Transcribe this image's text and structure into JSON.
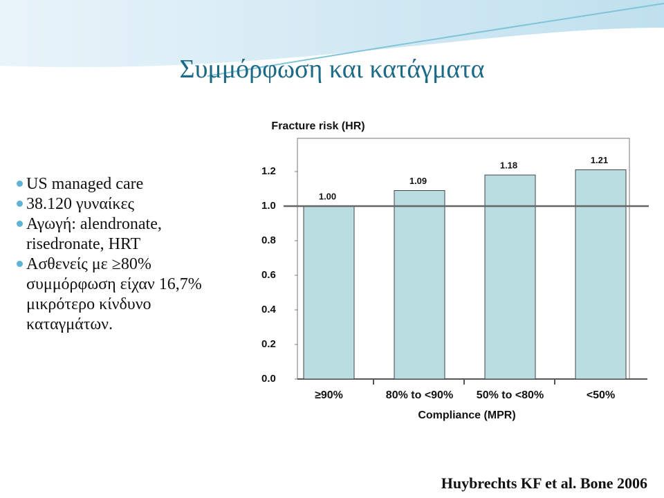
{
  "slide": {
    "title": "Συμμόρφωση και κατάγματα",
    "bullets": [
      "US managed care",
      "38.120 γυναίκες",
      "Αγωγή: alendronate, risedronate, HRT",
      "Ασθενείς με ≥80% συμμόρφωση είχαν 16,7% μικρότερο κίνδυνο καταγμάτων."
    ],
    "citation": "Huybrechts KF et al. Bone 2006"
  },
  "chart_data": {
    "type": "bar",
    "title": "Fracture risk (HR)",
    "x_label": "Compliance (MPR)",
    "categories": [
      "≥90%",
      "80% to <90%",
      "50% to <80%",
      "<50%"
    ],
    "values": [
      1.0,
      1.09,
      1.18,
      1.21
    ],
    "value_labels": [
      "1.00",
      "1.09",
      "1.18",
      "1.21"
    ],
    "color": "#b9dde0",
    "ylim": [
      0,
      1.4
    ],
    "yticks": [
      {
        "value": 0,
        "label": "0.0"
      },
      0.2,
      0.4,
      0.6,
      0.8,
      {
        "value": 1,
        "label": "1.0"
      },
      1.2
    ],
    "reference_line": 1
  }
}
